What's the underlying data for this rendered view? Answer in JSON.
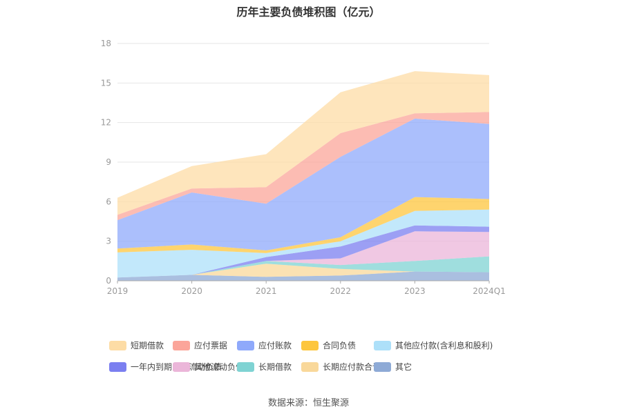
{
  "title": "历年主要负债堆积图（亿元）",
  "source": "数据来源：恒生聚源",
  "chart_data": {
    "type": "area",
    "stacked": true,
    "categories": [
      "2019",
      "2020",
      "2021",
      "2022",
      "2023",
      "2024Q1"
    ],
    "ylim": [
      0,
      18
    ],
    "yticks": [
      "0",
      "3",
      "6",
      "9",
      "12",
      "15",
      "18"
    ],
    "grid": true,
    "legend_position": "bottom",
    "series": [
      {
        "name": "其它",
        "color": "#8eaad6",
        "values": [
          0.25,
          0.45,
          0.3,
          0.4,
          0.7,
          0.65
        ]
      },
      {
        "name": "长期应付款合计",
        "color": "#f9d89a",
        "values": [
          0.0,
          0.0,
          1.0,
          0.5,
          0.0,
          0.0
        ]
      },
      {
        "name": "长期借款",
        "color": "#7fd3d3",
        "values": [
          0.0,
          0.0,
          0.2,
          0.3,
          0.8,
          1.2
        ]
      },
      {
        "name": "其他流动负债",
        "color": "#ebb6d9",
        "values": [
          0.0,
          0.0,
          0.0,
          0.5,
          2.25,
          1.85
        ]
      },
      {
        "name": "一年内到期的非流动负债",
        "color": "#7b7ff0",
        "values": [
          0.0,
          0.0,
          0.3,
          0.9,
          0.45,
          0.4
        ]
      },
      {
        "name": "其他应付款(含利息和股利)",
        "color": "#ade0f9",
        "values": [
          1.9,
          1.9,
          0.3,
          0.4,
          1.1,
          1.3
        ]
      },
      {
        "name": "合同负债",
        "color": "#fdc63d",
        "values": [
          0.3,
          0.4,
          0.2,
          0.3,
          1.05,
          0.8
        ]
      },
      {
        "name": "应付账款",
        "color": "#8fa9fb",
        "values": [
          2.15,
          3.95,
          3.55,
          6.1,
          5.95,
          5.7
        ]
      },
      {
        "name": "应付票据",
        "color": "#fba59a",
        "values": [
          0.4,
          0.3,
          1.25,
          1.8,
          0.4,
          0.9
        ]
      },
      {
        "name": "短期借款",
        "color": "#fddca5",
        "values": [
          1.3,
          1.7,
          2.5,
          3.1,
          3.2,
          2.8
        ]
      }
    ],
    "legend": [
      {
        "name": "短期借款",
        "color": "#fddca5"
      },
      {
        "name": "应付票据",
        "color": "#fba59a"
      },
      {
        "name": "应付账款",
        "color": "#8fa9fb"
      },
      {
        "name": "合同负债",
        "color": "#fdc63d"
      },
      {
        "name": "其他应付款(含利息和股利)",
        "color": "#ade0f9"
      },
      {
        "name": "一年内到期的非流动负债",
        "color": "#7b7ff0"
      },
      {
        "name": "其他流动负债",
        "color": "#ebb6d9"
      },
      {
        "name": "长期借款",
        "color": "#7fd3d3"
      },
      {
        "name": "长期应付款合计",
        "color": "#f9d89a"
      },
      {
        "name": "其它",
        "color": "#8eaad6"
      }
    ]
  }
}
